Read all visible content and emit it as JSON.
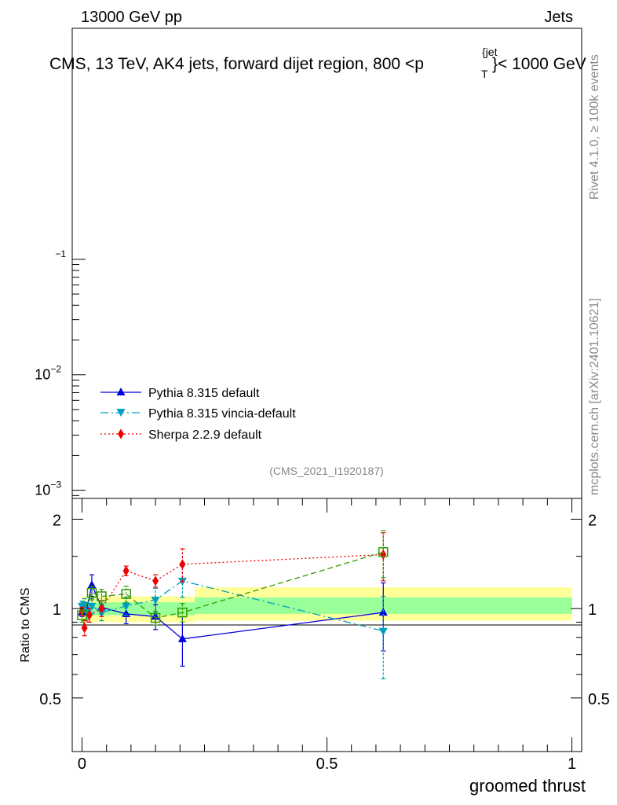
{
  "header": {
    "energy_label": "13000 GeV pp",
    "category_label": "Jets",
    "title_main": "CMS, 13 TeV, AK4 jets, forward dijet region, 800 <p",
    "title_sub": "T",
    "title_sup": "{jet",
    "title_end": "}< 1000 GeV"
  },
  "side_labels": {
    "rivet": "Rivet 4.1.0, ≥ 100k events",
    "mcplots": "mcplots.cern.ch [arXiv:2401.10621]"
  },
  "analysis_id": "(CMS_2021_I1920187)",
  "colors": {
    "pythia": "#0000dd",
    "vincia": "#00a0c0",
    "sherpa": "#ee0000",
    "data_green": "#339900",
    "band_yellow": "#ffff99",
    "band_green": "#99ff99"
  },
  "chart_data": [
    {
      "type": "line",
      "panel": "main",
      "yscale": "log",
      "ylabel": "",
      "yticks": [
        {
          "value": 0.001,
          "base": "10",
          "exp": "−3"
        },
        {
          "value": 0.01,
          "base": "10",
          "exp": "−2"
        },
        {
          "value": 0.1,
          "base": "",
          "exp": "−1"
        }
      ],
      "ylim": [
        0.00085,
        10
      ],
      "legend_position": "middle-left",
      "legend": [
        {
          "key": "pythia",
          "label": "Pythia 8.315 default"
        },
        {
          "key": "vincia",
          "label": "Pythia 8.315 vincia-default"
        },
        {
          "key": "sherpa",
          "label": "Sherpa 2.2.9 default"
        }
      ]
    },
    {
      "type": "line",
      "panel": "ratio",
      "xlabel": "groomed thrust",
      "ylabel": "Ratio to CMS",
      "xlim": [
        -0.02,
        1.02
      ],
      "ylim": [
        0.33,
        2.35
      ],
      "xticks": [
        {
          "value": 0,
          "label": "0"
        },
        {
          "value": 0.5,
          "label": "0.5"
        },
        {
          "value": 1,
          "label": "1"
        }
      ],
      "yticks": [
        {
          "value": 0.5,
          "label": "0.5"
        },
        {
          "value": 1,
          "label": "1"
        },
        {
          "value": 2,
          "label": "2"
        }
      ],
      "bands": [
        {
          "x0": 0.0,
          "x1": 0.23,
          "yellow": [
            0.9,
            1.1
          ],
          "green": [
            0.95,
            1.05
          ]
        },
        {
          "x0": 0.23,
          "x1": 1.0,
          "yellow": [
            0.91,
            1.18
          ],
          "green": [
            0.96,
            1.09
          ]
        }
      ],
      "x": [
        0.0,
        0.01,
        0.02,
        0.04,
        0.09,
        0.15,
        0.205,
        0.615
      ],
      "series": [
        {
          "name": "Pythia 8.315 default",
          "key": "pythia",
          "marker": "triangle-up",
          "dash": "",
          "x": [
            0.0,
            0.01,
            0.02,
            0.04,
            0.09,
            0.15,
            0.205,
            0.615
          ],
          "values": [
            0.97,
            1.0,
            1.2,
            1.01,
            0.96,
            0.94,
            0.79,
            0.97
          ],
          "errors": [
            0.03,
            0.04,
            0.1,
            0.05,
            0.07,
            0.09,
            0.15,
            0.25
          ]
        },
        {
          "name": "Pythia 8.315 vincia-default",
          "key": "vincia",
          "marker": "triangle-down",
          "dash": "10,4,2,4",
          "x": [
            0.0,
            0.005,
            0.01,
            0.02,
            0.04,
            0.09,
            0.15,
            0.205,
            0.615
          ],
          "values": [
            1.02,
            1.03,
            0.98,
            1.02,
            0.97,
            1.02,
            1.07,
            1.24,
            0.84
          ],
          "errors": [
            0.04,
            0.05,
            0.06,
            0.06,
            0.06,
            0.07,
            0.1,
            0.15,
            0.26
          ]
        },
        {
          "name": "Sherpa 2.2.9 default",
          "key": "sherpa",
          "marker": "diamond",
          "dash": "2,3",
          "x": [
            0.0,
            0.005,
            0.015,
            0.04,
            0.09,
            0.15,
            0.205,
            0.615
          ],
          "values": [
            0.98,
            0.86,
            0.95,
            1.0,
            1.34,
            1.24,
            1.41,
            1.52
          ],
          "errors": [
            0.03,
            0.05,
            0.05,
            0.06,
            0.05,
            0.06,
            0.18,
            0.28
          ]
        },
        {
          "name": "",
          "key": "data_green",
          "marker": "square-open",
          "dash": "7,4",
          "x": [
            0.0,
            0.02,
            0.04,
            0.09,
            0.15,
            0.205,
            0.615
          ],
          "values": [
            0.95,
            1.13,
            1.1,
            1.12,
            0.93,
            0.97,
            1.55
          ],
          "errors": [
            0.05,
            0.06,
            0.06,
            0.07,
            0.05,
            0.07,
            0.28
          ]
        }
      ]
    }
  ]
}
